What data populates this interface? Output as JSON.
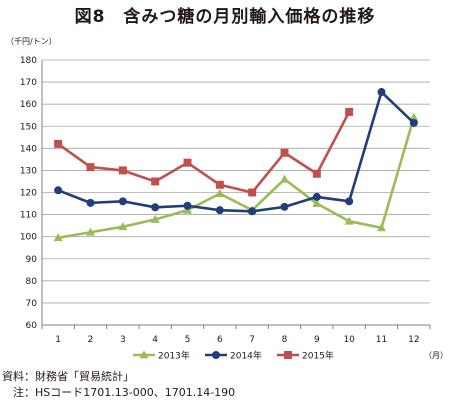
{
  "title": "図8　含みつ糖の月別輸入価格の推移",
  "y_unit": "（千円/トン）",
  "x_unit": "（月）",
  "source_lines": [
    "資料：財務省「貿易統計」",
    "注：HSコード1701.13-000、1701.14-190"
  ],
  "chart_data": {
    "type": "line",
    "x": [
      1,
      2,
      3,
      4,
      5,
      6,
      7,
      8,
      9,
      10,
      11,
      12
    ],
    "ylim": [
      60,
      180
    ],
    "yticks": [
      60,
      70,
      80,
      90,
      100,
      110,
      120,
      130,
      140,
      150,
      160,
      170,
      180
    ],
    "grid": true,
    "legend_position": "bottom",
    "series": [
      {
        "name": "2013年",
        "color": "#9bbb59",
        "marker": "triangle",
        "values": [
          99.5,
          102,
          104.5,
          107.8,
          112,
          119.5,
          112,
          126,
          115,
          107,
          104,
          154
        ]
      },
      {
        "name": "2014年",
        "color": "#1f3e7a",
        "marker": "circle",
        "values": [
          121,
          115.3,
          116,
          113.3,
          114,
          112,
          111.5,
          113.5,
          118,
          116,
          165.5,
          151.5
        ]
      },
      {
        "name": "2015年",
        "color": "#c0504d",
        "marker": "square",
        "values": [
          142,
          131.5,
          130,
          125,
          133.5,
          123.5,
          120,
          138,
          128.5,
          156.5,
          null,
          null
        ]
      }
    ]
  }
}
